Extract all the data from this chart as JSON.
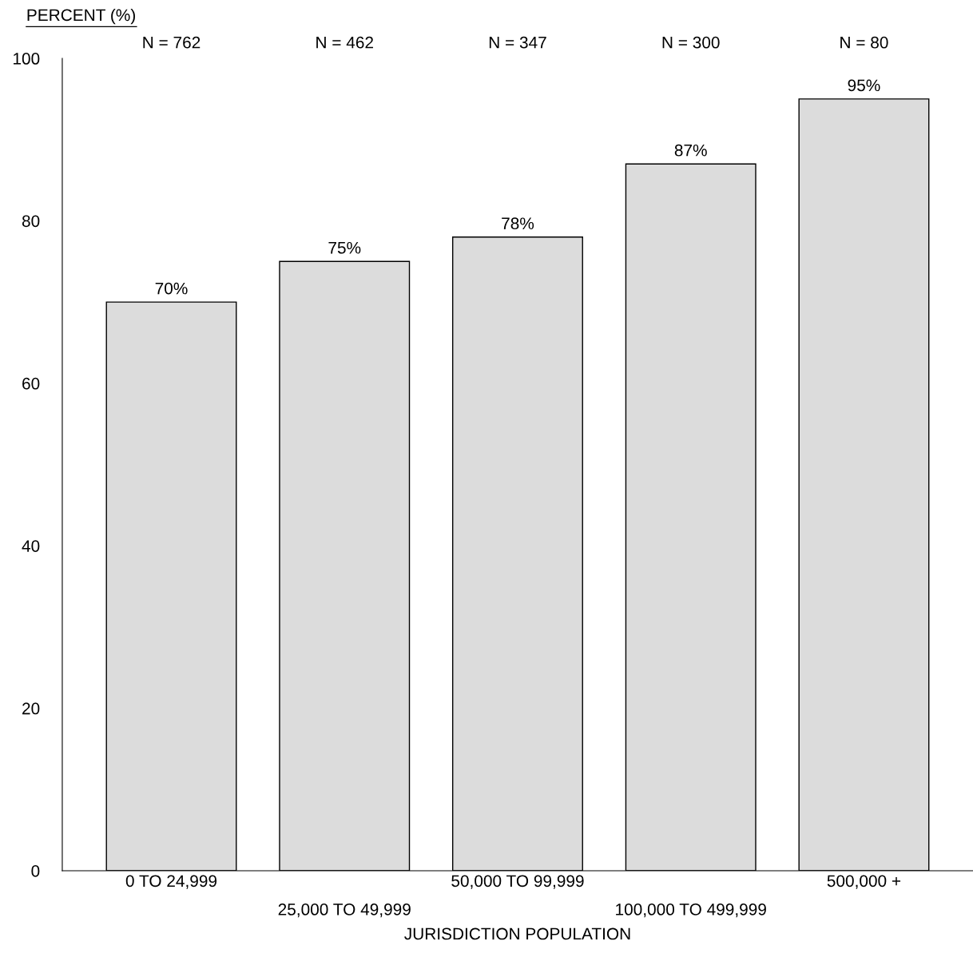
{
  "chart_data": {
    "type": "bar",
    "ylabel": "PERCENT (%)",
    "xlabel": "JURISDICTION POPULATION",
    "categories": [
      "0 TO 24,999",
      "25,000 TO 49,999",
      "50,000 TO 99,999",
      "100,000 TO 499,999",
      "500,000 +"
    ],
    "values": [
      70,
      75,
      78,
      87,
      95
    ],
    "value_labels": [
      "70%",
      "75%",
      "78%",
      "87%",
      "95%"
    ],
    "color": "#dcdcdc",
    "ylim": [
      0,
      100
    ],
    "yticks": [
      0,
      20,
      40,
      60,
      80,
      100
    ],
    "grid": false,
    "annotations": [
      "N = 762",
      "N = 462",
      "N = 347",
      "N = 300",
      "N = 80"
    ]
  }
}
